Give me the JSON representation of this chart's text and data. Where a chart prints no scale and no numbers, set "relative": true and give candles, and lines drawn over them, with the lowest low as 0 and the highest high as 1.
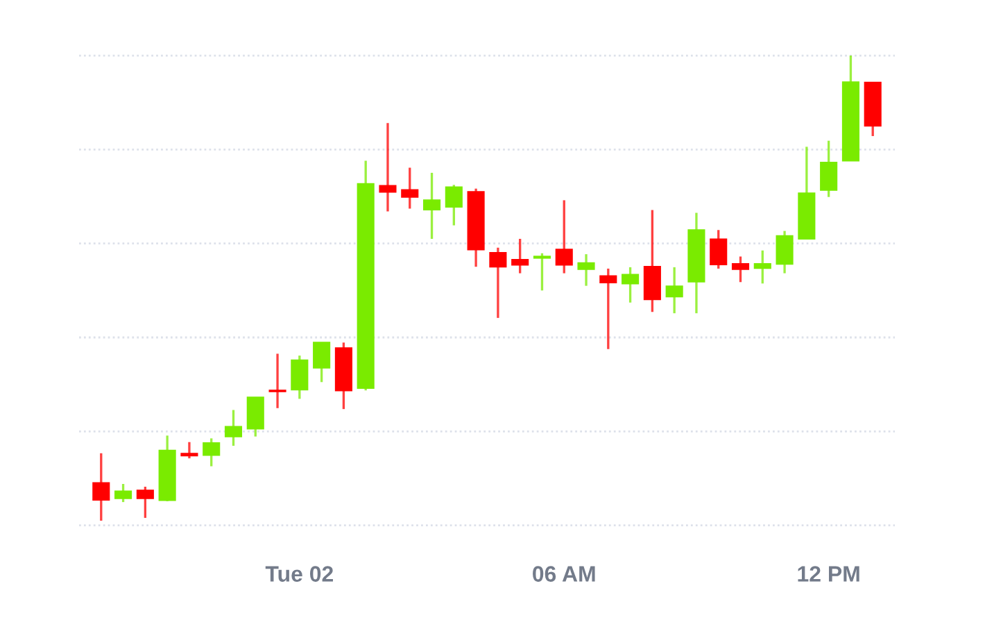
{
  "chart_data": {
    "type": "candlestick",
    "relative": true,
    "x": [
      -4.5,
      -4,
      -3.5,
      -3,
      -2.5,
      -2,
      -1.5,
      -1,
      -0.5,
      0,
      0.5,
      1,
      1.5,
      2,
      2.5,
      3,
      3.5,
      4,
      4.5,
      5,
      5.5,
      6,
      6.5,
      7,
      7.5,
      8,
      8.5,
      9,
      9.5,
      10,
      10.5,
      11,
      11.5,
      12,
      12.5,
      13
    ],
    "ohlc": [
      [
        0.081,
        0.145,
        0,
        0.045
      ],
      [
        0.048,
        0.079,
        0.04,
        0.063
      ],
      [
        0.065,
        0.073,
        0.006,
        0.048
      ],
      [
        0.044,
        0.183,
        0.042,
        0.151
      ],
      [
        0.144,
        0.169,
        0.134,
        0.14
      ],
      [
        0.141,
        0.177,
        0.117,
        0.167
      ],
      [
        0.181,
        0.238,
        0.161,
        0.202
      ],
      [
        0.198,
        0.265,
        0.181,
        0.265
      ],
      [
        0.28,
        0.359,
        0.242,
        0.278
      ],
      [
        0.282,
        0.355,
        0.262,
        0.345
      ],
      [
        0.329,
        0.383,
        0.298,
        0.383
      ],
      [
        0.371,
        0.383,
        0.24,
        0.28
      ],
      [
        0.285,
        0.774,
        0.28,
        0.724
      ],
      [
        0.72,
        0.855,
        0.665,
        0.707
      ],
      [
        0.711,
        0.759,
        0.671,
        0.696
      ],
      [
        0.669,
        0.748,
        0.606,
        0.689
      ],
      [
        0.675,
        0.722,
        0.635,
        0.717
      ],
      [
        0.707,
        0.714,
        0.546,
        0.583
      ],
      [
        0.576,
        0.587,
        0.436,
        0.546
      ],
      [
        0.561,
        0.606,
        0.532,
        0.55
      ],
      [
        0.565,
        0.575,
        0.495,
        0.568
      ],
      [
        0.583,
        0.689,
        0.532,
        0.55
      ],
      [
        0.541,
        0.573,
        0.505,
        0.554
      ],
      [
        0.526,
        0.542,
        0.369,
        0.512
      ],
      [
        0.51,
        0.545,
        0.469,
        0.529
      ],
      [
        0.546,
        0.668,
        0.449,
        0.476
      ],
      [
        0.482,
        0.545,
        0.446,
        0.504
      ],
      [
        0.514,
        0.662,
        0.446,
        0.625
      ],
      [
        0.605,
        0.625,
        0.542,
        0.551
      ],
      [
        0.552,
        0.568,
        0.513,
        0.541
      ],
      [
        0.543,
        0.581,
        0.51,
        0.552
      ],
      [
        0.552,
        0.623,
        0.532,
        0.612
      ],
      [
        0.606,
        0.804,
        0.606,
        0.704
      ],
      [
        0.711,
        0.817,
        0.696,
        0.77
      ],
      [
        0.774,
        1.0,
        0.774,
        0.943
      ],
      [
        0.942,
        0.942,
        0.827,
        0.849
      ]
    ],
    "colors": [
      "#ff0000",
      "#7aeb00",
      "#ff0000",
      "#7aeb00",
      "#ff0000",
      "#7aeb00",
      "#7aeb00",
      "#7aeb00",
      "#ff0000",
      "#7aeb00",
      "#7aeb00",
      "#ff0000",
      "#7aeb00",
      "#ff0000",
      "#ff0000",
      "#7aeb00",
      "#7aeb00",
      "#ff0000",
      "#ff0000",
      "#ff0000",
      "#7aeb00",
      "#ff0000",
      "#7aeb00",
      "#ff0000",
      "#7aeb00",
      "#ff0000",
      "#7aeb00",
      "#7aeb00",
      "#ff0000",
      "#ff0000",
      "#7aeb00",
      "#7aeb00",
      "#7aeb00",
      "#7aeb00",
      "#7aeb00",
      "#ff0000"
    ],
    "xlim": [
      -5,
      13.5
    ],
    "xticks": [
      {
        "value": 0,
        "label": "Tue 02"
      },
      {
        "value": 6,
        "label": "06 AM"
      },
      {
        "value": 12,
        "label": "12 PM"
      }
    ],
    "grid": "y",
    "tick_labels": "x"
  }
}
